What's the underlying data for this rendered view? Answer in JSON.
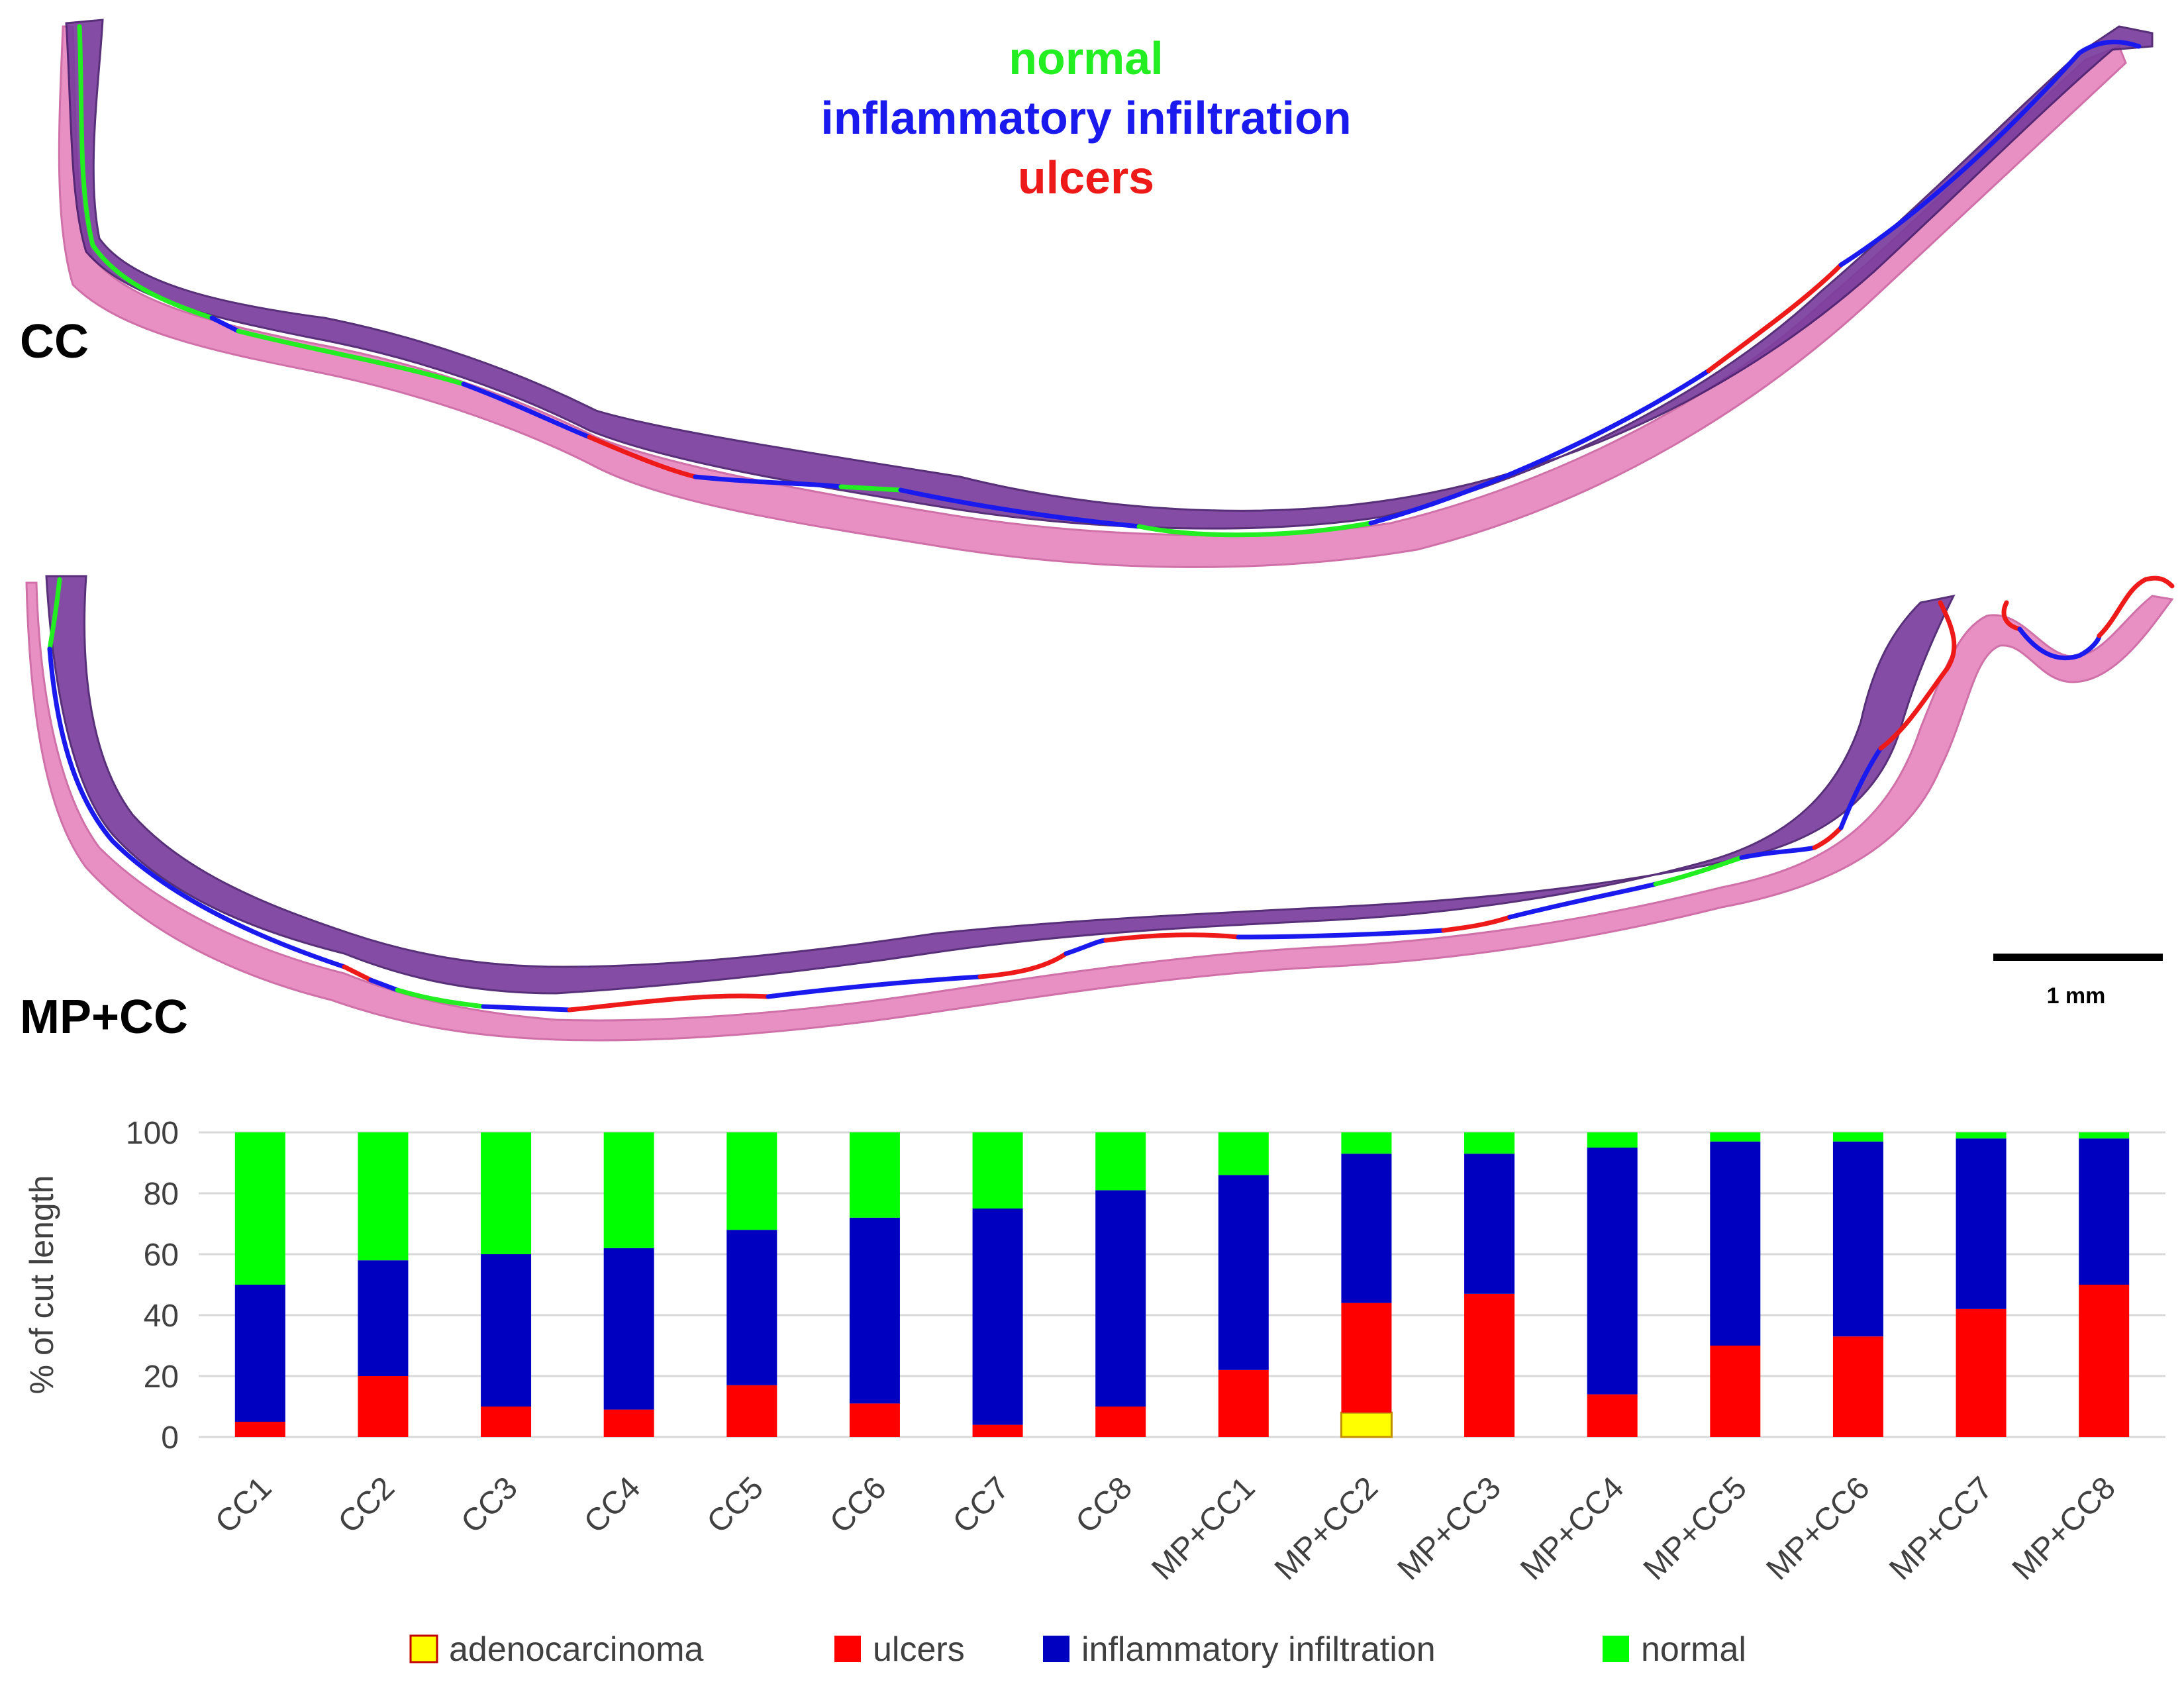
{
  "image_legend": {
    "normal": {
      "label": "normal",
      "color": "#22ee22"
    },
    "inflammatory": {
      "label": "inflammatory infiltration",
      "color": "#1a1aee"
    },
    "ulcers": {
      "label": "ulcers",
      "color": "#ee1a1a"
    }
  },
  "panels": {
    "cc": {
      "label": "CC"
    },
    "mpcc": {
      "label": "MP+CC"
    }
  },
  "scale_bar": {
    "label": "1 mm"
  },
  "colors": {
    "adenocarcinoma": "#ffff00",
    "ulcers": "#ff0000",
    "inflammatory": "#0000c0",
    "normal": "#00ff00",
    "tissue_epithelium": "#7a3d9e",
    "tissue_stroma": "#e890c4",
    "grid": "#d9d9d9",
    "axis_text": "#404040"
  },
  "chart_data": {
    "type": "bar",
    "stacked": true,
    "ylabel": "% of cut length",
    "ylim": [
      0,
      100
    ],
    "yticks": [
      0,
      20,
      40,
      60,
      80,
      100
    ],
    "grid": true,
    "legend_position": "bottom",
    "categories": [
      "CC1",
      "CC2",
      "CC3",
      "CC4",
      "CC5",
      "CC6",
      "CC7",
      "CC8",
      "MP+CC1",
      "MP+CC2",
      "MP+CC3",
      "MP+CC4",
      "MP+CC5",
      "MP+CC6",
      "MP+CC7",
      "MP+CC8"
    ],
    "series": [
      {
        "key": "adenocarcinoma",
        "name": "adenocarcinoma",
        "values": [
          0,
          0,
          0,
          0,
          0,
          0,
          0,
          0,
          0,
          8,
          0,
          0,
          0,
          0,
          0,
          0
        ]
      },
      {
        "key": "ulcers",
        "name": "ulcers",
        "values": [
          5,
          20,
          10,
          9,
          17,
          11,
          4,
          10,
          22,
          36,
          47,
          14,
          30,
          33,
          42,
          50
        ]
      },
      {
        "key": "inflammatory",
        "name": "inflammatory infiltration",
        "values": [
          45,
          38,
          50,
          53,
          51,
          61,
          71,
          71,
          64,
          49,
          46,
          81,
          67,
          64,
          56,
          48
        ]
      },
      {
        "key": "normal",
        "name": "normal",
        "values": [
          50,
          42,
          40,
          38,
          32,
          28,
          25,
          19,
          14,
          7,
          7,
          5,
          3,
          3,
          2,
          2
        ]
      }
    ]
  }
}
